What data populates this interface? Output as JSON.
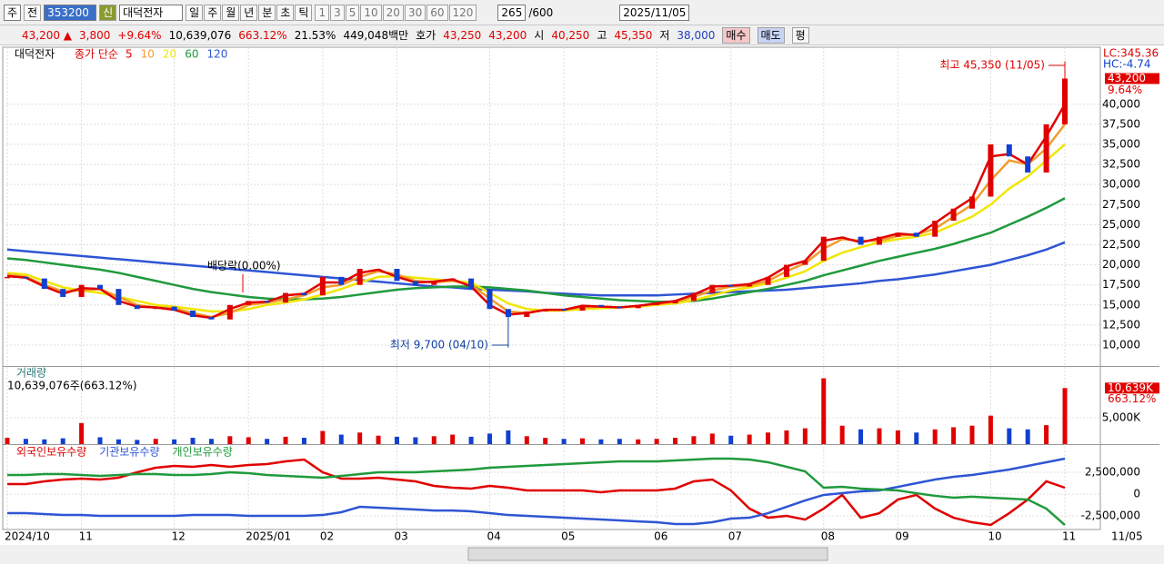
{
  "toolbar": {
    "prefix": "주",
    "prev": "전",
    "code": "353200",
    "credit": "신",
    "name": "대덕전자",
    "periods": [
      "일",
      "주",
      "월",
      "년",
      "분",
      "초",
      "틱"
    ],
    "intervals": [
      "1",
      "3",
      "5",
      "10",
      "20",
      "30",
      "60",
      "120"
    ],
    "count": "265",
    "total": "/600",
    "date": "2025/11/05"
  },
  "info_bar": {
    "price": "43,200 ▲",
    "change": "3,800",
    "rate": "+9.64%",
    "volume": "10,639,076",
    "volume_rate": "663.12%",
    "turnover": "21.53%",
    "amount": "449,048백만",
    "ask_label": "호가",
    "ask": "43,250",
    "bid": "43,200",
    "open_label": "시",
    "open": "40,250",
    "high_label": "고",
    "high": "45,350",
    "low_label": "저",
    "low": "38,000",
    "buy": "매수",
    "sell": "매도",
    "balance": "평"
  },
  "chart_data": [
    {
      "type": "candle",
      "title": "대덕전자",
      "legend_prefix": "종가 단순",
      "categories": [
        "2024/10",
        null,
        null,
        null,
        "11",
        null,
        null,
        null,
        null,
        "12",
        null,
        null,
        null,
        "2025/01",
        null,
        null,
        null,
        "02",
        null,
        null,
        null,
        "03",
        null,
        null,
        null,
        null,
        "04",
        null,
        null,
        null,
        "05",
        null,
        null,
        null,
        null,
        "06",
        null,
        null,
        null,
        "07",
        null,
        null,
        null,
        null,
        "08",
        null,
        null,
        null,
        "09",
        null,
        null,
        null,
        null,
        "10",
        null,
        null,
        null,
        "11"
      ],
      "x_end_label": "11/05",
      "values": [
        18500,
        18300,
        17000,
        16000,
        17500,
        17000,
        15000,
        14500,
        14800,
        14300,
        13500,
        13200,
        15000,
        15500,
        15300,
        16500,
        16200,
        18500,
        17500,
        19500,
        19500,
        18000,
        17500,
        18000,
        18300,
        17000,
        14500,
        13500,
        14200,
        14500,
        14300,
        15000,
        14800,
        14600,
        15000,
        15200,
        15500,
        16500,
        17500,
        17300,
        17500,
        18500,
        20000,
        20500,
        23500,
        23500,
        22500,
        23500,
        24000,
        23500,
        25500,
        27000,
        28500,
        35000,
        33500,
        31500,
        37500,
        43200
      ],
      "series": [
        {
          "name": "5",
          "color": "#e00000",
          "values": [
            18600,
            18400,
            17300,
            16400,
            17100,
            17000,
            15500,
            14800,
            14700,
            14400,
            13700,
            13400,
            14500,
            15300,
            15400,
            16200,
            16400,
            17800,
            17800,
            19000,
            19400,
            18500,
            17800,
            17900,
            18200,
            17300,
            15000,
            13800,
            14000,
            14400,
            14400,
            14900,
            14800,
            14700,
            14900,
            15200,
            15500,
            16300,
            17300,
            17400,
            17600,
            18400,
            19800,
            20500,
            23000,
            23400,
            22800,
            23300,
            23900,
            23700,
            25200,
            26800,
            28300,
            33500,
            33800,
            32500,
            36000,
            40000
          ]
        },
        {
          "name": "10",
          "color": "#f39c2c",
          "values": [
            18800,
            18500,
            17500,
            16700,
            16800,
            17000,
            16000,
            15000,
            14700,
            14600,
            14000,
            13500,
            14000,
            15000,
            15300,
            15700,
            16200,
            17200,
            17500,
            18500,
            19200,
            18800,
            18000,
            17800,
            18000,
            17500,
            15800,
            14200,
            14000,
            14400,
            14400,
            14700,
            14800,
            14700,
            14900,
            15100,
            15400,
            16000,
            16800,
            17300,
            17400,
            18000,
            19200,
            20200,
            22000,
            23200,
            23000,
            23000,
            23600,
            23800,
            24500,
            26000,
            27500,
            30500,
            33000,
            32500,
            34500,
            37500
          ]
        },
        {
          "name": "20",
          "color": "#f2e600",
          "values": [
            19000,
            18800,
            18000,
            17200,
            16800,
            16500,
            16000,
            15500,
            15000,
            14800,
            14500,
            14200,
            14200,
            14500,
            15000,
            15300,
            15700,
            16300,
            17000,
            17800,
            18500,
            18600,
            18400,
            18200,
            18000,
            17800,
            16500,
            15200,
            14500,
            14300,
            14300,
            14500,
            14600,
            14700,
            14800,
            15000,
            15200,
            15600,
            16200,
            16800,
            17200,
            17700,
            18400,
            19200,
            20500,
            21500,
            22200,
            22800,
            23200,
            23500,
            24000,
            25000,
            26000,
            27500,
            29500,
            31000,
            33000,
            35000
          ]
        },
        {
          "name": "60",
          "color": "#1f9a3c",
          "values": [
            20800,
            20600,
            20300,
            20000,
            19700,
            19400,
            19000,
            18500,
            18000,
            17500,
            17000,
            16600,
            16300,
            16000,
            15800,
            15700,
            15700,
            15800,
            16000,
            16300,
            16600,
            16900,
            17100,
            17200,
            17300,
            17300,
            17200,
            17000,
            16800,
            16500,
            16200,
            16000,
            15800,
            15600,
            15500,
            15400,
            15400,
            15500,
            15800,
            16200,
            16600,
            17000,
            17500,
            18000,
            18700,
            19300,
            19900,
            20500,
            21000,
            21500,
            22000,
            22600,
            23300,
            24000,
            25000,
            26000,
            27100,
            28300
          ]
        },
        {
          "name": "120",
          "color": "#2f55d4",
          "values": [
            21900,
            21700,
            21500,
            21300,
            21100,
            20900,
            20700,
            20500,
            20300,
            20100,
            19900,
            19700,
            19500,
            19300,
            19100,
            18900,
            18700,
            18500,
            18300,
            18100,
            17900,
            17700,
            17500,
            17300,
            17200,
            17000,
            16900,
            16800,
            16700,
            16500,
            16400,
            16300,
            16200,
            16200,
            16200,
            16200,
            16300,
            16400,
            16500,
            16600,
            16700,
            16800,
            16900,
            17100,
            17300,
            17500,
            17700,
            18000,
            18200,
            18500,
            18800,
            19200,
            19600,
            20000,
            20600,
            21200,
            21900,
            22800
          ]
        }
      ],
      "ylim": [
        7400,
        47100
      ],
      "yticks": [
        {
          "value": 10000,
          "label": "10,000"
        },
        {
          "value": 12500,
          "label": "12,500"
        },
        {
          "value": 15000,
          "label": "15,000"
        },
        {
          "value": 17500,
          "label": "17,500"
        },
        {
          "value": 20000,
          "label": "20,000"
        },
        {
          "value": 22500,
          "label": "22,500"
        },
        {
          "value": 25000,
          "label": "25,000"
        },
        {
          "value": 27500,
          "label": "27,500"
        },
        {
          "value": 30000,
          "label": "30,000"
        },
        {
          "value": 32500,
          "label": "32,500"
        },
        {
          "value": 35000,
          "label": "35,000"
        },
        {
          "value": 37500,
          "label": "37,500"
        },
        {
          "value": 40000,
          "label": "40,000"
        }
      ],
      "high": {
        "value": 45350,
        "label": "최고 45,350 (11/05)"
      },
      "low": {
        "value": 9700,
        "label": "최저 9,700 (04/10)"
      },
      "dividend": "배당락(0.00%)",
      "right_labels": [
        "LC:345.36",
        "HC:-4.74"
      ],
      "last": {
        "value": 43200,
        "label": "43,200"
      },
      "last_change": "9.64%"
    },
    {
      "type": "bar",
      "title": "거래량",
      "subtitle": "10,639,076주(663.12%)",
      "values": [
        1200000,
        1000000,
        900000,
        1100000,
        4000000,
        1300000,
        900000,
        800000,
        1000000,
        900000,
        1200000,
        1000000,
        1500000,
        1300000,
        1000000,
        1400000,
        1200000,
        2500000,
        1800000,
        2200000,
        1600000,
        1400000,
        1300000,
        1500000,
        1800000,
        1400000,
        2000000,
        2600000,
        1500000,
        1200000,
        1000000,
        1100000,
        900000,
        1000000,
        900000,
        1000000,
        1200000,
        1500000,
        2000000,
        1600000,
        1800000,
        2200000,
        2600000,
        3000000,
        12500000,
        3500000,
        2800000,
        3000000,
        2600000,
        2200000,
        2800000,
        3200000,
        3500000,
        5400000,
        3000000,
        2800000,
        3600000,
        10639076
      ],
      "ylim": [
        0,
        14660000
      ],
      "yticks": [
        {
          "value": 5000000,
          "label": "5,000K"
        }
      ],
      "last": {
        "value": 10639076,
        "label": "10,639K"
      },
      "last_rate": "663.12%"
    },
    {
      "type": "line",
      "series": [
        {
          "name": "외국인보유수량",
          "color": "#e00000",
          "values": [
            1150000,
            1150000,
            1460000,
            1670000,
            1770000,
            1670000,
            1880000,
            2500000,
            3020000,
            3230000,
            3130000,
            3330000,
            3130000,
            3330000,
            3440000,
            3750000,
            3960000,
            2500000,
            1770000,
            1770000,
            1880000,
            1670000,
            1460000,
            940000,
            730000,
            630000,
            940000,
            730000,
            420000,
            420000,
            420000,
            420000,
            210000,
            420000,
            420000,
            420000,
            630000,
            1460000,
            1670000,
            420000,
            -1670000,
            -2710000,
            -2500000,
            -2920000,
            -1670000,
            -100000,
            -2710000,
            -2190000,
            -630000,
            -100000,
            -1670000,
            -2710000,
            -3230000,
            -3540000,
            -2190000,
            -630000,
            1460000,
            730000
          ]
        },
        {
          "name": "기관보유수량",
          "color": "#2f55d4",
          "values": [
            -2190000,
            -2190000,
            -2290000,
            -2400000,
            -2400000,
            -2500000,
            -2500000,
            -2500000,
            -2500000,
            -2500000,
            -2400000,
            -2400000,
            -2400000,
            -2500000,
            -2500000,
            -2500000,
            -2500000,
            -2400000,
            -2080000,
            -1460000,
            -1560000,
            -1670000,
            -1770000,
            -1880000,
            -1880000,
            -1980000,
            -2190000,
            -2400000,
            -2500000,
            -2600000,
            -2710000,
            -2810000,
            -2920000,
            -3020000,
            -3130000,
            -3230000,
            -3440000,
            -3440000,
            -3230000,
            -2810000,
            -2710000,
            -2190000,
            -1460000,
            -730000,
            -100000,
            100000,
            310000,
            420000,
            830000,
            1250000,
            1670000,
            1980000,
            2190000,
            2500000,
            2810000,
            3230000,
            3650000,
            4060000
          ]
        },
        {
          "name": "개인보유수량",
          "color": "#1f9a3c",
          "values": [
            2190000,
            2190000,
            2290000,
            2290000,
            2190000,
            2080000,
            2190000,
            2290000,
            2290000,
            2190000,
            2190000,
            2290000,
            2500000,
            2400000,
            2190000,
            2080000,
            1980000,
            1880000,
            2080000,
            2290000,
            2500000,
            2500000,
            2500000,
            2600000,
            2710000,
            2810000,
            3020000,
            3130000,
            3230000,
            3330000,
            3440000,
            3540000,
            3650000,
            3750000,
            3750000,
            3750000,
            3850000,
            3960000,
            4060000,
            4060000,
            3960000,
            3650000,
            3130000,
            2600000,
            730000,
            830000,
            630000,
            520000,
            420000,
            100000,
            -200000,
            -420000,
            -300000,
            -420000,
            -520000,
            -630000,
            -1670000,
            -3540000
          ]
        }
      ],
      "ylim": [
        -4060000,
        5625000
      ],
      "yticks": [
        {
          "value": -2500000,
          "label": "-2,500,000"
        },
        {
          "value": 0,
          "label": "0"
        },
        {
          "value": 2500000,
          "label": "2,500,000"
        }
      ]
    }
  ]
}
